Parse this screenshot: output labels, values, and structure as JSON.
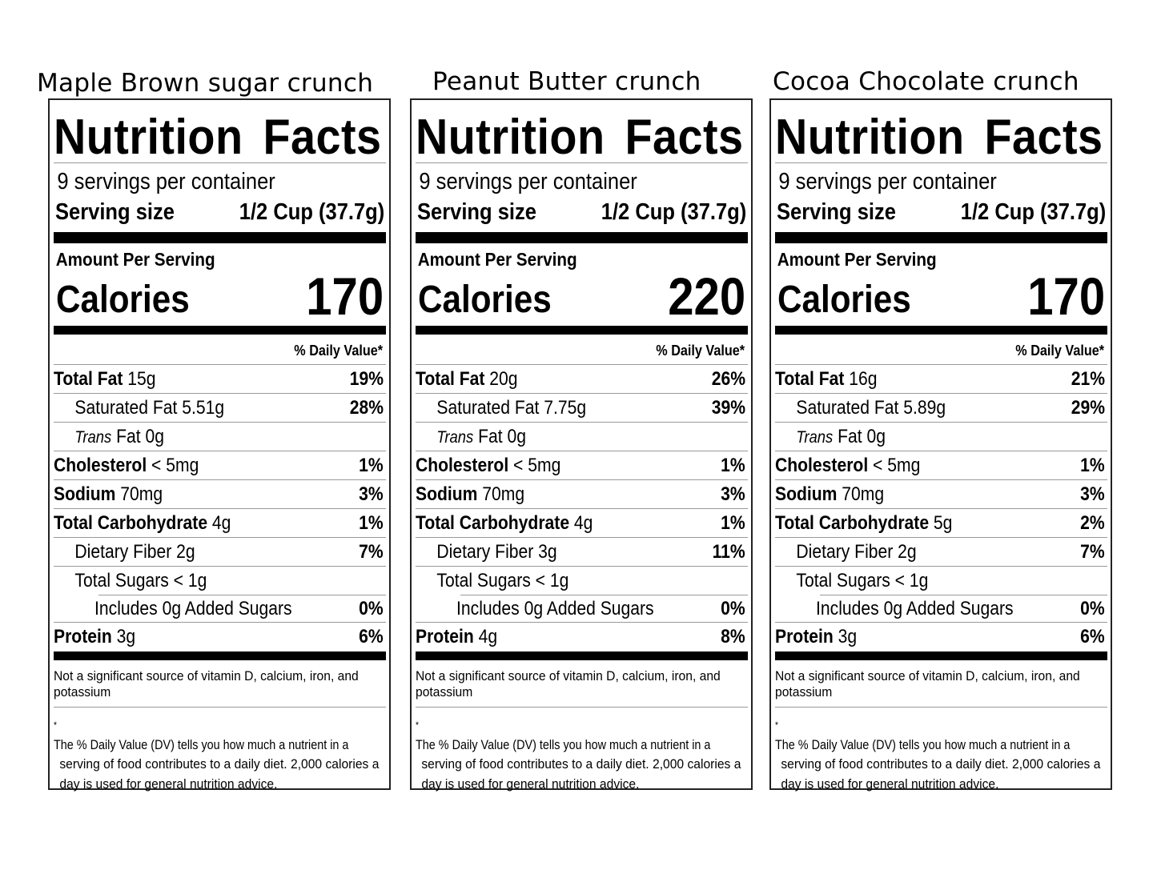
{
  "labels": [
    {
      "product": "Maple Brown sugar crunch",
      "title": "Nutrition Facts",
      "servings": "9 servings per container",
      "serving_size_label": "Serving size",
      "serving_size_value": "1/2 Cup (37.7g)",
      "amount_per_serving": "Amount Per Serving",
      "calories_label": "Calories",
      "calories": "170",
      "dv_header": "% Daily Value*",
      "total_fat": {
        "label": "Total Fat",
        "amount": "15g",
        "dv": "19%"
      },
      "saturated_fat": {
        "label": "Saturated Fat 5.51g",
        "dv": "28%"
      },
      "trans_fat": {
        "label_italic": "Trans",
        "label": "Fat 0g"
      },
      "cholesterol": {
        "label": "Cholesterol",
        "amount": "< 5mg",
        "dv": "1%"
      },
      "sodium": {
        "label": "Sodium",
        "amount": "70mg",
        "dv": "3%"
      },
      "total_carb": {
        "label": "Total Carbohydrate",
        "amount": "4g",
        "dv": "1%"
      },
      "dietary_fiber": {
        "label": "Dietary Fiber 2g",
        "dv": "7%"
      },
      "total_sugars": {
        "label": "Total Sugars < 1g"
      },
      "added_sugars": {
        "label": "Includes 0g Added Sugars",
        "dv": "0%"
      },
      "protein": {
        "label": "Protein",
        "amount": "3g",
        "dv": "6%"
      },
      "footnote1_line1": "Not a significant source of vitamin D, calcium, iron, and",
      "footnote1_line2": "potassium",
      "footnote2_star": "*",
      "footnote2_line1": "The % Daily Value (DV) tells you how much a nutrient in a",
      "footnote2_line2": "serving of food contributes to a daily diet. 2,000 calories a",
      "footnote2_line3": "day is used for general nutrition advice."
    },
    {
      "product": "Peanut Butter crunch",
      "title": "Nutrition Facts",
      "servings": "9 servings per container",
      "serving_size_label": "Serving size",
      "serving_size_value": "1/2 Cup (37.7g)",
      "amount_per_serving": "Amount Per Serving",
      "calories_label": "Calories",
      "calories": "220",
      "dv_header": "% Daily Value*",
      "total_fat": {
        "label": "Total Fat",
        "amount": "20g",
        "dv": "26%"
      },
      "saturated_fat": {
        "label": "Saturated Fat 7.75g",
        "dv": "39%"
      },
      "trans_fat": {
        "label_italic": "Trans",
        "label": "Fat 0g"
      },
      "cholesterol": {
        "label": "Cholesterol",
        "amount": "< 5mg",
        "dv": "1%"
      },
      "sodium": {
        "label": "Sodium",
        "amount": "70mg",
        "dv": "3%"
      },
      "total_carb": {
        "label": "Total Carbohydrate",
        "amount": "4g",
        "dv": "1%"
      },
      "dietary_fiber": {
        "label": "Dietary Fiber 3g",
        "dv": "11%"
      },
      "total_sugars": {
        "label": "Total Sugars < 1g"
      },
      "added_sugars": {
        "label": "Includes 0g Added Sugars",
        "dv": "0%"
      },
      "protein": {
        "label": "Protein",
        "amount": "4g",
        "dv": "8%"
      },
      "footnote1_line1": "Not a significant source of vitamin D, calcium, iron, and",
      "footnote1_line2": "potassium",
      "footnote2_star": "*",
      "footnote2_line1": "The % Daily Value (DV) tells you how much a nutrient in a",
      "footnote2_line2": "serving of food contributes to a daily diet. 2,000 calories a",
      "footnote2_line3": "day is used for general nutrition advice."
    },
    {
      "product": "Cocoa Chocolate crunch",
      "title": "Nutrition Facts",
      "servings": "9 servings per container",
      "serving_size_label": "Serving size",
      "serving_size_value": "1/2 Cup (37.7g)",
      "amount_per_serving": "Amount Per Serving",
      "calories_label": "Calories",
      "calories": "170",
      "dv_header": "% Daily Value*",
      "total_fat": {
        "label": "Total Fat",
        "amount": "16g",
        "dv": "21%"
      },
      "saturated_fat": {
        "label": "Saturated Fat 5.89g",
        "dv": "29%"
      },
      "trans_fat": {
        "label_italic": "Trans",
        "label": "Fat 0g"
      },
      "cholesterol": {
        "label": "Cholesterol",
        "amount": "< 5mg",
        "dv": "1%"
      },
      "sodium": {
        "label": "Sodium",
        "amount": "70mg",
        "dv": "3%"
      },
      "total_carb": {
        "label": "Total Carbohydrate",
        "amount": "5g",
        "dv": "2%"
      },
      "dietary_fiber": {
        "label": "Dietary Fiber 2g",
        "dv": "7%"
      },
      "total_sugars": {
        "label": "Total Sugars < 1g"
      },
      "added_sugars": {
        "label": "Includes 0g Added Sugars",
        "dv": "0%"
      },
      "protein": {
        "label": "Protein",
        "amount": "3g",
        "dv": "6%"
      },
      "footnote1_line1": "Not a significant source of vitamin D, calcium, iron, and",
      "footnote1_line2": "potassium",
      "footnote2_star": "*",
      "footnote2_line1": "The % Daily Value (DV) tells you how much a nutrient in a",
      "footnote2_line2": "serving of food contributes to a daily diet. 2,000 calories a",
      "footnote2_line3": "day is used for general nutrition advice."
    }
  ]
}
